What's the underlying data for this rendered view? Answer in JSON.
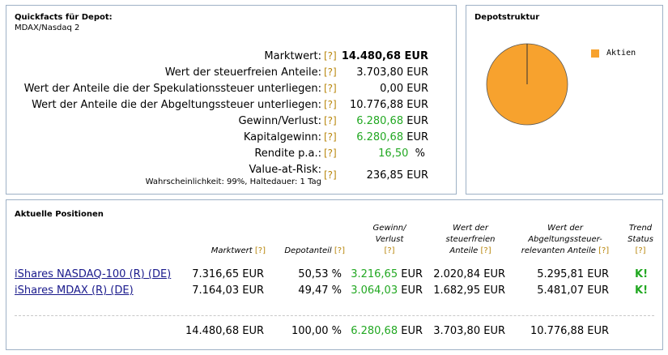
{
  "quickfacts": {
    "title": "Quickfacts für Depot:",
    "subtitle": "MDAX/Nasdaq 2",
    "help": "[?]",
    "rows": [
      {
        "label": "Marktwert:",
        "value": "14.480,68 EUR"
      },
      {
        "label": "Wert der steuerfreien Anteile:",
        "value": "3.703,80 EUR"
      },
      {
        "label": "Wert der Anteile die der Spekulationssteuer unterliegen:",
        "value": "0,00 EUR"
      },
      {
        "label": "Wert der Anteile die der Abgeltungssteuer unterliegen:",
        "value": "10.776,88 EUR"
      },
      {
        "label": "Gewinn/Verlust:",
        "value": "6.280,68",
        "unit": "EUR"
      },
      {
        "label": "Kapitalgewinn:",
        "value": "6.280,68",
        "unit": "EUR"
      },
      {
        "label": "Rendite p.a.:",
        "value": "16,50",
        "unit": "%"
      },
      {
        "label": "Value-at-Risk:",
        "note": "Wahrscheinlichkeit: 99%, Haltedauer: 1 Tag",
        "value": "236,85 EUR"
      }
    ]
  },
  "struktur": {
    "title": "Depotstruktur",
    "legend": "Aktien",
    "color": "#f7a22e",
    "share": 1.0
  },
  "positions": {
    "title": "Aktuelle Positionen",
    "headers": {
      "marktwert": "Marktwert",
      "depotanteil": "Depotanteil",
      "gewinn": "Gewinn/ Verlust",
      "steuerfrei": "Wert der steuerfreien Anteile",
      "abgeltung": "Wert der Abgeltungssteuer-relevanten Anteile",
      "trend": "Trend Status",
      "help": "[?]"
    },
    "rows": [
      {
        "name": "iShares NASDAQ-100 (R) (DE)",
        "marktwert": "7.316,65 EUR",
        "depotanteil": "50,53 %",
        "gewinn": "3.216,65",
        "gewinn_unit": "EUR",
        "steuerfrei": "2.020,84 EUR",
        "abgeltung": "5.295,81 EUR",
        "trend": "K!"
      },
      {
        "name": "iShares MDAX (R) (DE)",
        "marktwert": "7.164,03 EUR",
        "depotanteil": "49,47 %",
        "gewinn": "3.064,03",
        "gewinn_unit": "EUR",
        "steuerfrei": "1.682,95 EUR",
        "abgeltung": "5.481,07 EUR",
        "trend": "K!"
      }
    ],
    "totals": {
      "marktwert": "14.480,68 EUR",
      "depotanteil": "100,00 %",
      "gewinn": "6.280,68",
      "gewinn_unit": "EUR",
      "steuerfrei": "3.703,80 EUR",
      "abgeltung": "10.776,88 EUR"
    }
  }
}
